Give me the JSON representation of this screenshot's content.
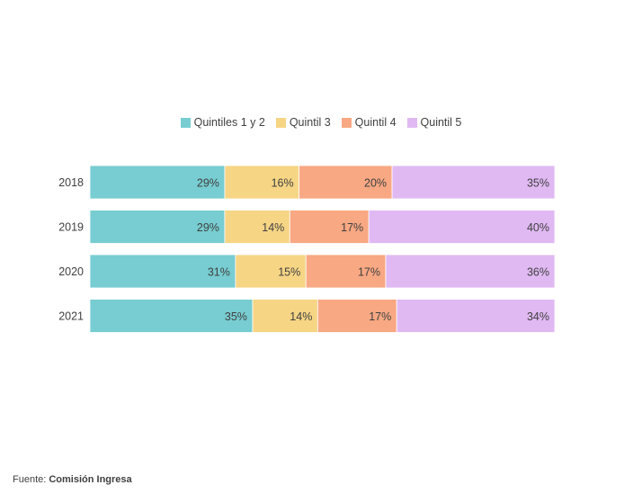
{
  "chart_data": {
    "type": "bar",
    "orientation": "horizontal",
    "stacked": true,
    "normalized": true,
    "categories": [
      "2018",
      "2019",
      "2020",
      "2021"
    ],
    "series": [
      {
        "name": "Quintiles 1 y 2",
        "color": "#77cdd1",
        "values": [
          29,
          29,
          31,
          35
        ],
        "labels": [
          "29%",
          "29%",
          "31%",
          "35%"
        ]
      },
      {
        "name": "Quintil 3",
        "color": "#f6d585",
        "values": [
          16,
          14,
          15,
          14
        ],
        "labels": [
          "16%",
          "14%",
          "15%",
          "14%"
        ]
      },
      {
        "name": "Quintil 4",
        "color": "#f8a883",
        "values": [
          20,
          17,
          17,
          17
        ],
        "labels": [
          "20%",
          "17%",
          "17%",
          "17%"
        ]
      },
      {
        "name": "Quintil 5",
        "color": "#e0b9f3",
        "values": [
          35,
          40,
          36,
          34
        ],
        "labels": [
          "35%",
          "40%",
          "36%",
          "34%"
        ]
      }
    ],
    "legend_position": "top",
    "grid": false
  },
  "source": {
    "prefix": "Fuente: ",
    "name": "Comisión Ingresa"
  }
}
